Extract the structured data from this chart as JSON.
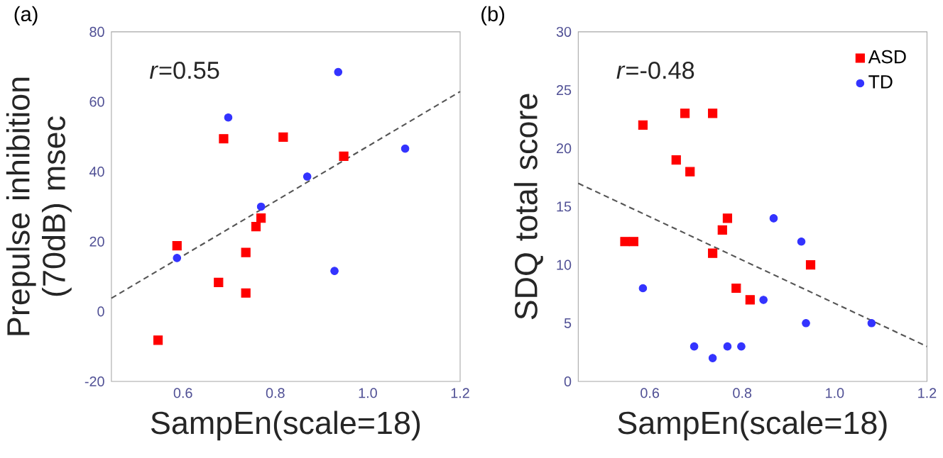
{
  "chart_data": [
    {
      "type": "scatter",
      "title": "(a)",
      "xlabel": "SampEn(scale=18)",
      "ylabel": "Prepulse inhibition (70dB) msec",
      "xlim": [
        0.445,
        1.2
      ],
      "ylim": [
        -20,
        80
      ],
      "xticks": [
        0.6,
        0.8,
        {
          "value": 1.0,
          "label": "1.0"
        },
        1.2
      ],
      "yticks": [
        -20,
        0,
        20,
        40,
        60,
        80
      ],
      "annotations": [
        "*r*=0.55"
      ],
      "series": [
        {
          "color": "#ff0000",
          "marker": "square",
          "x": [
            0.546,
            0.587,
            0.677,
            0.688,
            0.736,
            0.736,
            0.758,
            0.769,
            0.817,
            0.948
          ],
          "values": [
            -8.2,
            18.8,
            8.3,
            49.4,
            16.9,
            5.3,
            24.3,
            26.7,
            49.9,
            44.4
          ]
        },
        {
          "color": "#3333ff",
          "marker": "circle",
          "x": [
            0.587,
            0.698,
            0.769,
            0.869,
            0.928,
            0.936,
            1.081
          ],
          "values": [
            15.3,
            55.5,
            30.0,
            38.6,
            11.6,
            68.5,
            46.6
          ]
        },
        {
          "type": "line",
          "color": "#555555",
          "line_style": "dashed",
          "x": [
            0.445,
            1.2
          ],
          "values": [
            3.8,
            62.9
          ]
        }
      ]
    },
    {
      "type": "scatter",
      "title": "(b)",
      "xlabel": "SampEn(scale=18)",
      "ylabel": "SDQ total score",
      "xlim": [
        0.445,
        1.2
      ],
      "ylim": [
        0,
        30
      ],
      "xticks": [
        0.6,
        0.8,
        {
          "value": 1.0,
          "label": "1.0"
        },
        1.2
      ],
      "yticks": [
        0,
        5,
        10,
        15,
        20,
        25,
        30
      ],
      "annotations": [
        "*r*=-0.48"
      ],
      "legend": "top right",
      "series": [
        {
          "name": "ASD",
          "color": "#ff0000",
          "marker": "square",
          "x": [
            0.546,
            0.565,
            0.585,
            0.657,
            0.676,
            0.687,
            0.736,
            0.736,
            0.757,
            0.768,
            0.787,
            0.817,
            0.948
          ],
          "values": [
            12,
            12,
            22,
            19,
            23,
            18,
            23,
            11,
            13,
            14,
            8,
            7,
            10
          ]
        },
        {
          "name": "TD",
          "color": "#3333ff",
          "marker": "circle",
          "x": [
            0.585,
            0.696,
            0.736,
            0.768,
            0.798,
            0.846,
            0.868,
            0.928,
            0.938,
            1.08
          ],
          "values": [
            8,
            3,
            2,
            3,
            3,
            7,
            14,
            12,
            5,
            5
          ]
        },
        {
          "type": "line",
          "color": "#555555",
          "line_style": "dashed",
          "x": [
            0.445,
            1.2
          ],
          "values": [
            17.0,
            3.0
          ]
        }
      ]
    }
  ]
}
